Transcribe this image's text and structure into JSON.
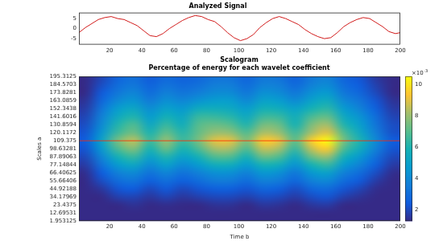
{
  "chart_data": [
    {
      "type": "line",
      "title": "Analyzed Signal",
      "x": [
        1,
        5,
        9,
        13,
        17,
        21,
        25,
        29,
        33,
        37,
        41,
        45,
        49,
        53,
        57,
        61,
        65,
        69,
        73,
        77,
        81,
        85,
        89,
        93,
        97,
        101,
        105,
        109,
        113,
        117,
        121,
        125,
        129,
        133,
        137,
        141,
        145,
        149,
        153,
        157,
        161,
        165,
        169,
        173,
        177,
        181,
        185,
        189,
        193,
        197,
        200
      ],
      "values": [
        -2.0,
        0.5,
        2.5,
        4.5,
        5.5,
        6.0,
        5.0,
        4.5,
        3.0,
        1.5,
        -1.0,
        -3.5,
        -4.0,
        -2.5,
        0.0,
        2.0,
        4.0,
        5.5,
        6.5,
        6.0,
        4.5,
        3.5,
        1.0,
        -2.0,
        -4.5,
        -6.0,
        -5.0,
        -3.0,
        0.5,
        3.0,
        5.0,
        6.0,
        5.0,
        3.5,
        2.0,
        -0.5,
        -2.5,
        -4.0,
        -5.0,
        -4.5,
        -2.0,
        1.0,
        3.0,
        4.5,
        5.5,
        5.0,
        3.0,
        1.0,
        -1.5,
        -2.5,
        -2.0
      ],
      "color": "#cc0000",
      "xlim": [
        1,
        200
      ],
      "xticks": [
        20,
        40,
        60,
        80,
        100,
        120,
        140,
        160,
        180,
        200
      ],
      "ylim": [
        -8,
        8
      ],
      "yticks": [
        -5,
        0,
        5
      ],
      "grid": false
    },
    {
      "type": "heatmap",
      "title": "Scalogram",
      "subtitle": "Percentage of energy for each wavelet coefficient",
      "x_label": "Time b",
      "y_label": "Scales a",
      "xlim": [
        1,
        200
      ],
      "xticks": [
        20,
        40,
        60,
        80,
        100,
        120,
        140,
        160,
        180,
        200
      ],
      "ylim": [
        1.953125,
        195.3125
      ],
      "yticks": [
        1.953125,
        12.69531,
        23.4375,
        34.17969,
        44.92188,
        55.66406,
        66.40625,
        77.14844,
        87.89063,
        98.63281,
        109.375,
        120.1172,
        130.8594,
        141.6016,
        152.3438,
        163.0859,
        173.8281,
        184.5703,
        195.3125
      ],
      "x_centers": [
        5,
        15,
        25,
        35,
        45,
        55,
        65,
        75,
        85,
        95,
        105,
        115,
        125,
        135,
        145,
        155,
        165,
        175,
        185,
        195
      ],
      "y_centers": [
        1.953125,
        12.69531,
        23.4375,
        34.17969,
        44.92188,
        55.66406,
        66.40625,
        77.14844,
        87.89063,
        98.63281,
        109.375,
        120.1172,
        130.8594,
        141.6016,
        152.3438,
        163.0859,
        173.8281,
        184.5703,
        195.3125
      ],
      "cells": [
        [
          0.6,
          0.7,
          0.9,
          0.9,
          0.8,
          0.9,
          0.8,
          0.9,
          0.9,
          0.9,
          0.9,
          1.0,
          0.9,
          0.8,
          1.0,
          1.0,
          0.9,
          0.8,
          0.7,
          0.6
        ],
        [
          0.7,
          0.9,
          1.1,
          1.1,
          1.0,
          1.1,
          1.0,
          1.1,
          1.2,
          1.2,
          1.1,
          1.2,
          1.2,
          1.0,
          1.2,
          1.3,
          1.1,
          0.9,
          0.8,
          0.7
        ],
        [
          0.7,
          1.0,
          1.3,
          1.5,
          1.2,
          1.4,
          1.2,
          1.3,
          1.5,
          1.5,
          1.3,
          1.6,
          1.5,
          1.3,
          1.6,
          1.7,
          1.3,
          1.2,
          0.9,
          0.7
        ],
        [
          0.9,
          1.3,
          1.8,
          1.9,
          1.6,
          1.9,
          1.6,
          1.8,
          2.0,
          2.0,
          1.8,
          2.1,
          2.0,
          1.7,
          2.1,
          2.3,
          1.8,
          1.5,
          1.1,
          0.9
        ],
        [
          1.0,
          1.6,
          2.3,
          2.5,
          2.0,
          2.4,
          2.0,
          2.3,
          2.6,
          2.6,
          2.3,
          2.8,
          2.6,
          2.1,
          2.8,
          3.0,
          2.3,
          1.9,
          1.4,
          1.0
        ],
        [
          1.2,
          2.1,
          3.0,
          3.3,
          2.6,
          3.1,
          2.6,
          3.0,
          3.5,
          3.5,
          3.0,
          3.7,
          3.5,
          2.8,
          3.7,
          4.0,
          3.0,
          2.4,
          1.7,
          1.2
        ],
        [
          1.4,
          2.5,
          3.7,
          4.1,
          3.2,
          3.9,
          3.2,
          3.7,
          4.3,
          4.3,
          3.7,
          4.6,
          4.3,
          3.4,
          4.6,
          5.0,
          3.7,
          3.0,
          2.1,
          1.4
        ],
        [
          1.7,
          3.2,
          4.7,
          5.3,
          4.1,
          5.0,
          4.1,
          4.7,
          5.6,
          5.6,
          4.7,
          5.9,
          5.6,
          4.4,
          5.9,
          6.5,
          4.7,
          3.8,
          2.6,
          1.7
        ],
        [
          2.0,
          3.9,
          5.8,
          6.5,
          5.0,
          6.1,
          5.0,
          5.8,
          6.9,
          6.9,
          5.8,
          7.3,
          6.9,
          5.4,
          7.3,
          8.0,
          5.8,
          4.6,
          3.1,
          2.0
        ],
        [
          2.3,
          4.6,
          6.8,
          7.7,
          5.9,
          7.3,
          5.9,
          6.8,
          8.2,
          8.2,
          6.8,
          8.6,
          8.2,
          6.4,
          8.6,
          9.5,
          6.8,
          5.5,
          3.7,
          2.3
        ],
        [
          2.5,
          5.0,
          7.5,
          8.5,
          6.5,
          8.0,
          6.5,
          7.5,
          9.0,
          9.0,
          7.5,
          9.5,
          9.0,
          7.0,
          9.5,
          10.5,
          7.5,
          6.0,
          4.0,
          2.5
        ],
        [
          2.3,
          4.5,
          6.6,
          7.4,
          6.0,
          7.2,
          6.2,
          7.2,
          8.0,
          7.9,
          6.9,
          8.3,
          8.0,
          6.6,
          8.2,
          9.0,
          6.9,
          5.4,
          3.6,
          2.2
        ],
        [
          2.1,
          4.1,
          6.1,
          6.9,
          5.3,
          6.5,
          5.6,
          7.0,
          7.3,
          7.0,
          6.1,
          7.5,
          7.3,
          5.9,
          7.6,
          8.2,
          6.1,
          4.9,
          3.3,
          2.1
        ],
        [
          1.9,
          3.7,
          5.4,
          6.1,
          4.7,
          5.8,
          5.2,
          6.5,
          6.5,
          6.2,
          5.4,
          6.6,
          6.5,
          5.6,
          6.8,
          7.2,
          5.4,
          4.4,
          3.0,
          1.9
        ],
        [
          1.7,
          3.3,
          4.8,
          5.3,
          4.2,
          5.0,
          4.6,
          5.5,
          5.6,
          5.4,
          4.8,
          5.8,
          5.6,
          5.0,
          5.9,
          6.3,
          4.7,
          3.8,
          2.6,
          1.7
        ],
        [
          1.5,
          2.8,
          4.0,
          4.5,
          3.5,
          4.3,
          3.9,
          4.4,
          4.8,
          4.8,
          4.0,
          5.0,
          4.8,
          4.1,
          5.0,
          5.5,
          4.0,
          3.3,
          2.3,
          1.5
        ],
        [
          1.3,
          2.4,
          3.4,
          3.9,
          3.0,
          3.7,
          3.3,
          3.6,
          4.1,
          4.1,
          3.4,
          4.3,
          4.1,
          3.4,
          4.3,
          4.7,
          3.4,
          2.8,
          2.0,
          1.3
        ],
        [
          1.2,
          2.1,
          3.0,
          3.4,
          2.7,
          3.2,
          2.9,
          3.1,
          3.6,
          3.6,
          3.0,
          3.7,
          3.6,
          2.9,
          3.7,
          4.1,
          3.0,
          2.5,
          1.8,
          1.2
        ],
        [
          1.1,
          1.9,
          2.7,
          3.1,
          2.4,
          2.9,
          2.6,
          2.8,
          3.2,
          3.2,
          2.7,
          3.4,
          3.2,
          2.6,
          3.4,
          3.7,
          2.7,
          2.3,
          1.6,
          1.1
        ]
      ],
      "colorbar": {
        "range": [
          1.3,
          10.5
        ],
        "ticks": [
          2,
          4,
          6,
          8,
          10
        ],
        "multiplier": {
          "base": "×10",
          "exponent": "-3"
        }
      },
      "hline": {
        "value": 109.375,
        "color": "#ff2a00"
      },
      "grid": false
    }
  ]
}
